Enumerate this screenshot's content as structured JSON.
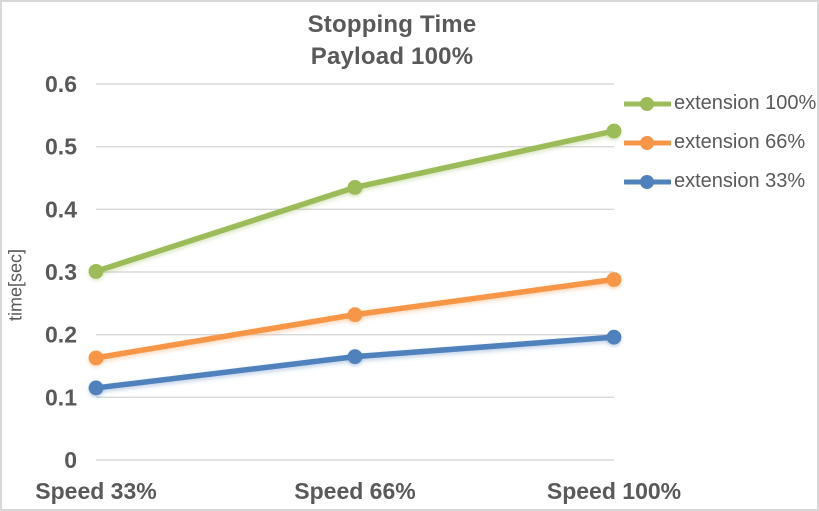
{
  "window": {
    "background": "#FFFFFF",
    "border_color": "#D8D8D8"
  },
  "chart_data": {
    "type": "line",
    "title": "Stopping Time",
    "subtitle": "Payload 100%",
    "categories": [
      "Speed 33%",
      "Speed 66%",
      "Speed 100%"
    ],
    "series": [
      {
        "name": "extension 100%",
        "color": "#9CBB59",
        "values": [
          0.301,
          0.435,
          0.525
        ]
      },
      {
        "name": "extension 66%",
        "color": "#F79646",
        "values": [
          0.163,
          0.232,
          0.288
        ]
      },
      {
        "name": "extension 33%",
        "color": "#4F81BD",
        "values": [
          0.115,
          0.165,
          0.196
        ]
      }
    ],
    "xlabel": "",
    "ylabel": "time[sec]",
    "ylim": [
      0,
      0.6
    ],
    "y_ticks": [
      "0",
      "0.1",
      "0.2",
      "0.3",
      "0.4",
      "0.5",
      "0.6"
    ],
    "grid": "horizontal",
    "legend_position": "right",
    "marker": "circle",
    "gridline_color": "#D9D9D9",
    "text_color": "#595959"
  }
}
